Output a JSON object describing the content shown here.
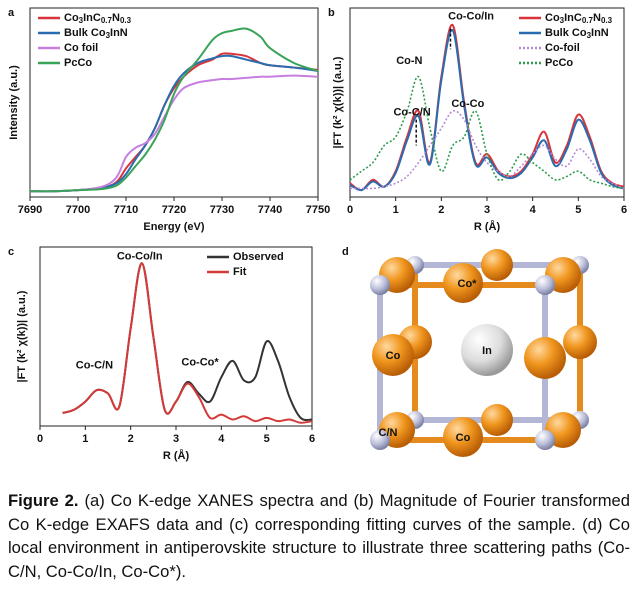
{
  "chart_data": [
    {
      "type": "line",
      "panel": "a",
      "xlabel": "Energy (eV)",
      "ylabel": "Intensity (a.u.)",
      "x": [
        7690,
        7695,
        7700,
        7705,
        7708,
        7710,
        7712,
        7714,
        7716,
        7718,
        7720,
        7722,
        7725,
        7728,
        7730,
        7732,
        7735,
        7738,
        7740,
        7745,
        7750
      ],
      "xlim": [
        7690,
        7750
      ],
      "xticks": [
        7690,
        7700,
        7710,
        7720,
        7730,
        7740,
        7750
      ],
      "ylim": [
        -0.05,
        1.6
      ],
      "legend": "upper left",
      "series": [
        {
          "name": "Co3InC0.7N0.3",
          "color": "#d9343a",
          "values": [
            0,
            0,
            0.01,
            0.03,
            0.08,
            0.2,
            0.3,
            0.4,
            0.55,
            0.75,
            0.9,
            1.0,
            1.1,
            1.15,
            1.2,
            1.2,
            1.18,
            1.12,
            1.1,
            1.08,
            1.06
          ]
        },
        {
          "name": "Bulk Co3InN",
          "color": "#2a6cb0",
          "values": [
            0,
            0,
            0.01,
            0.03,
            0.07,
            0.15,
            0.28,
            0.4,
            0.55,
            0.75,
            0.92,
            1.03,
            1.12,
            1.16,
            1.18,
            1.18,
            1.15,
            1.12,
            1.1,
            1.08,
            1.05
          ]
        },
        {
          "name": "Co foil",
          "color": "#c77ee0",
          "values": [
            0,
            0,
            0.01,
            0.04,
            0.12,
            0.3,
            0.38,
            0.42,
            0.5,
            0.65,
            0.8,
            0.9,
            0.95,
            0.97,
            0.98,
            0.98,
            0.99,
            1.0,
            1.0,
            1.01,
            1.0
          ]
        },
        {
          "name": "PcCo",
          "color": "#3aa35a",
          "values": [
            0,
            0,
            0.01,
            0.02,
            0.05,
            0.12,
            0.22,
            0.32,
            0.45,
            0.62,
            0.85,
            1.0,
            1.15,
            1.32,
            1.38,
            1.4,
            1.42,
            1.35,
            1.25,
            1.12,
            1.05
          ]
        }
      ]
    },
    {
      "type": "line",
      "panel": "b",
      "xlabel": "R (Å)",
      "ylabel": "|FT (k² χ(k))| (a.u.)",
      "x": [
        0,
        0.25,
        0.5,
        0.75,
        1,
        1.25,
        1.5,
        1.75,
        2,
        2.25,
        2.5,
        2.75,
        3,
        3.25,
        3.5,
        3.75,
        4,
        4.25,
        4.5,
        4.75,
        5,
        5.25,
        5.5,
        5.75,
        6
      ],
      "xlim": [
        0,
        6
      ],
      "xticks": [
        0,
        1,
        2,
        3,
        4,
        5,
        6
      ],
      "ylim": [
        0,
        1.1
      ],
      "legend": "upper right",
      "series": [
        {
          "name": "Co3InC0.7N0.3",
          "color": "#d9343a",
          "values": [
            0.08,
            0.04,
            0.1,
            0.06,
            0.15,
            0.35,
            0.5,
            0.2,
            0.7,
            1.0,
            0.55,
            0.2,
            0.25,
            0.15,
            0.12,
            0.15,
            0.25,
            0.38,
            0.2,
            0.3,
            0.48,
            0.35,
            0.15,
            0.08,
            0.06
          ]
        },
        {
          "name": "Bulk Co3InN",
          "color": "#2a6cb0",
          "values": [
            0.07,
            0.04,
            0.09,
            0.06,
            0.14,
            0.33,
            0.47,
            0.19,
            0.68,
            0.97,
            0.53,
            0.19,
            0.23,
            0.14,
            0.11,
            0.14,
            0.23,
            0.33,
            0.18,
            0.28,
            0.45,
            0.33,
            0.14,
            0.07,
            0.05
          ]
        },
        {
          "name": "Co-foil",
          "color": "#b58ad6",
          "dash": true,
          "values": [
            0.05,
            0.05,
            0.05,
            0.06,
            0.08,
            0.12,
            0.2,
            0.3,
            0.4,
            0.5,
            0.45,
            0.3,
            0.2,
            0.15,
            0.12,
            0.18,
            0.25,
            0.3,
            0.22,
            0.18,
            0.28,
            0.22,
            0.12,
            0.08,
            0.05
          ]
        },
        {
          "name": "PcCo",
          "color": "#2e9b4f",
          "dash": true,
          "values": [
            0.1,
            0.15,
            0.2,
            0.3,
            0.35,
            0.5,
            0.7,
            0.4,
            0.15,
            0.3,
            0.35,
            0.5,
            0.25,
            0.1,
            0.15,
            0.25,
            0.2,
            0.15,
            0.1,
            0.12,
            0.15,
            0.1,
            0.08,
            0.06,
            0.05
          ]
        }
      ],
      "annotations": [
        {
          "text": "Co-Co/In",
          "color": "#111"
        },
        {
          "text": "Co-N",
          "color": "#2e9b4f"
        },
        {
          "text": "Co-C/N",
          "color": "#111"
        },
        {
          "text": "Co-Co",
          "color": "#c06ad6"
        }
      ]
    },
    {
      "type": "line",
      "panel": "c",
      "xlabel": "R (Å)",
      "ylabel": "|FT (k² χ(k))| (a.u.)",
      "x": [
        0,
        0.25,
        0.5,
        0.75,
        1,
        1.25,
        1.5,
        1.75,
        2,
        2.25,
        2.5,
        2.75,
        3,
        3.25,
        3.5,
        3.75,
        4,
        4.25,
        4.5,
        4.75,
        5,
        5.25,
        5.5,
        5.75,
        6
      ],
      "xlim": [
        0,
        6
      ],
      "xticks": [
        0,
        1,
        2,
        3,
        4,
        5,
        6
      ],
      "ylim": [
        0,
        1.1
      ],
      "legend": "upper right",
      "series": [
        {
          "name": "Observed",
          "color": "#333333",
          "values": [
            null,
            null,
            0.08,
            0.1,
            0.15,
            0.22,
            0.2,
            0.12,
            0.6,
            1.0,
            0.55,
            0.1,
            0.15,
            0.27,
            0.2,
            0.15,
            0.3,
            0.4,
            0.28,
            0.3,
            0.52,
            0.4,
            0.18,
            0.05,
            0.04
          ]
        },
        {
          "name": "Fit",
          "color": "#d43a3a",
          "values": [
            null,
            null,
            0.08,
            0.1,
            0.15,
            0.22,
            0.2,
            0.12,
            0.6,
            1.0,
            0.55,
            0.1,
            0.15,
            0.26,
            0.18,
            0.05,
            0.07,
            0.04,
            0.06,
            0.03,
            0.05,
            0.03,
            0.04,
            0.02,
            0.03
          ]
        }
      ],
      "annotations": [
        {
          "text": "Co-Co/In",
          "color": "#111"
        },
        {
          "text": "Co-C/N",
          "color": "#111"
        },
        {
          "text": "Co-Co*",
          "color": "#111"
        }
      ]
    }
  ],
  "panel_d": {
    "panel": "d",
    "atoms": [
      "Co*",
      "In",
      "Co",
      "Co",
      "C/N"
    ]
  },
  "caption": {
    "label": "Figure 2.",
    "text": " (a) Co K-edge XANES spectra and (b) Magnitude of Fourier transformed Co K-edge EXAFS data and (c) corresponding fitting curves of the sample. (d) Co local environment in antiperovskite structure to illustrate three scattering paths (Co-C/N, Co-Co/In, Co-Co*)."
  }
}
